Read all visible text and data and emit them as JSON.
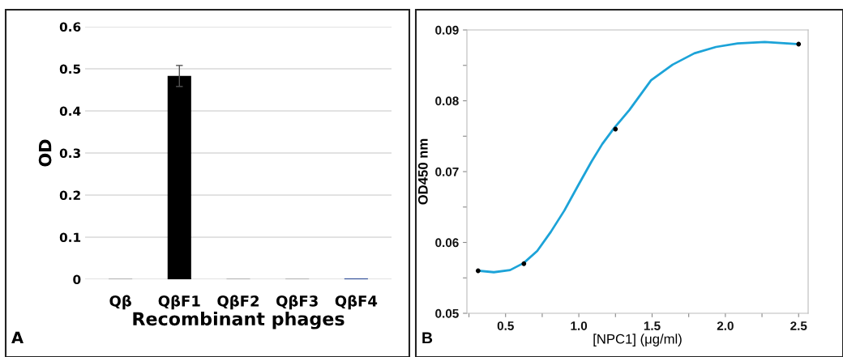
{
  "chart_data": [
    {
      "type": "bar",
      "xlabel": "Recombinant phages",
      "ylabel": "OD",
      "categories": [
        "Qβ",
        "QβF1",
        "QβF2",
        "QβF3",
        "QβF4"
      ],
      "values": [
        0.001,
        0.483,
        0.001,
        0.001,
        0.002
      ],
      "colors": [
        "#808080",
        "#000000",
        "#808080",
        "#808080",
        "#1f3f8f"
      ],
      "errors": [
        null,
        0.025,
        null,
        null,
        null
      ],
      "ylim": [
        0,
        0.6
      ],
      "yticks": [
        0,
        0.1,
        0.2,
        0.3,
        0.4,
        0.5,
        0.6
      ],
      "grid": "y",
      "annotations": [
        "A"
      ]
    },
    {
      "type": "line",
      "xlabel": "[NPC1] (μg/ml)",
      "ylabel": "OD450 nm",
      "xlim": [
        0.236,
        2.565
      ],
      "ylim": [
        0.05,
        0.09
      ],
      "xticks": [
        {
          "value": 0.25,
          "label": null
        },
        {
          "value": 0.5,
          "label": "0.5"
        },
        {
          "value": 0.75,
          "label": null
        },
        {
          "value": 1.0,
          "label": "1.0"
        },
        {
          "value": 1.25,
          "label": null
        },
        {
          "value": 1.5,
          "label": "1.5"
        },
        {
          "value": 1.75,
          "label": null
        },
        {
          "value": 2.0,
          "label": "2.0"
        },
        {
          "value": 2.25,
          "label": null
        },
        {
          "value": 2.5,
          "label": "2.5"
        }
      ],
      "yticks": [
        0.05,
        {
          "value": 0.055,
          "label": null
        },
        0.06,
        {
          "value": 0.065,
          "label": null
        },
        0.07,
        {
          "value": 0.075,
          "label": null
        },
        0.08,
        {
          "value": 0.085,
          "label": null
        },
        0.09
      ],
      "series": [
        {
          "type": "line",
          "color": "#1ca3d8",
          "marker": "none",
          "x": [
            0.315,
            0.42,
            0.531,
            0.624,
            0.716,
            0.809,
            0.901,
            0.994,
            1.086,
            1.16,
            1.239,
            1.345,
            1.493,
            1.64,
            1.788,
            1.936,
            2.084,
            2.269,
            2.5
          ],
          "values": [
            0.056,
            0.0558,
            0.0561,
            0.0571,
            0.0588,
            0.0615,
            0.0645,
            0.068,
            0.0714,
            0.0739,
            0.0761,
            0.0787,
            0.0829,
            0.0851,
            0.0867,
            0.0876,
            0.0881,
            0.0883,
            0.088
          ]
        },
        {
          "type": "scatter",
          "color": "#000000",
          "marker": "circle",
          "x": [
            0.3125,
            0.625,
            1.25,
            2.5
          ],
          "values": [
            0.056,
            0.057,
            0.076,
            0.088
          ]
        }
      ],
      "grid": false,
      "annotations": [
        "B"
      ]
    }
  ]
}
